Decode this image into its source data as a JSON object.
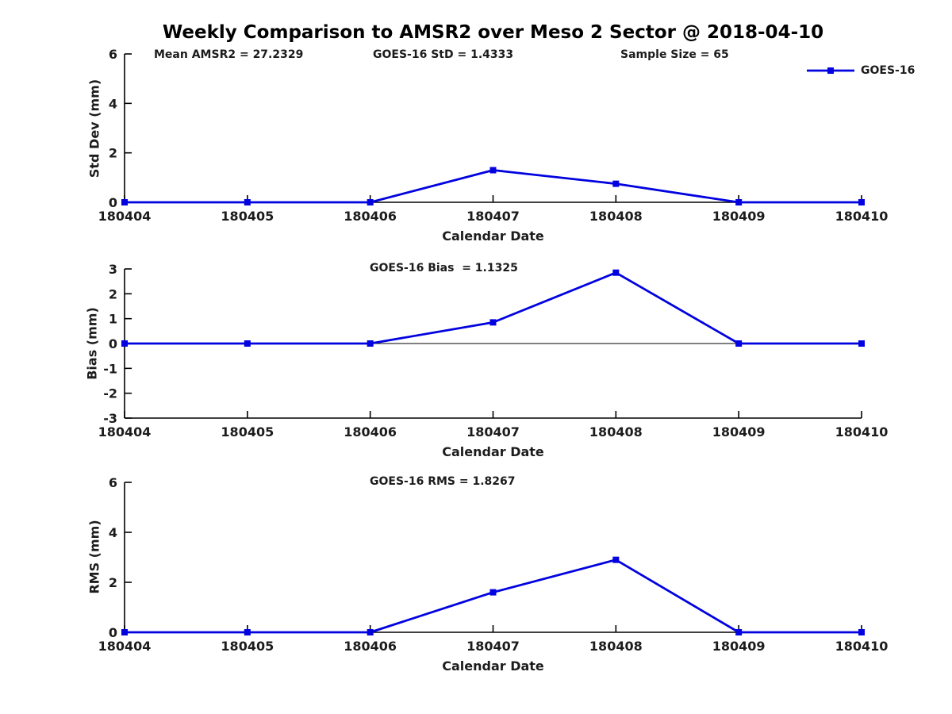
{
  "title": "Weekly Comparison to AMSR2 over Meso 2 Sector @ 2018-04-10",
  "legend": {
    "label": "GOES-16"
  },
  "colors": {
    "line": "#0202e0",
    "axis": "#000000",
    "text": "#1c1c1c"
  },
  "chart_data": [
    {
      "type": "line",
      "ylabel": "Std Dev (mm)",
      "xlabel": "Calendar Date",
      "annotations": [
        "Mean AMSR2 = 27.2329",
        "GOES-16 StD = 1.4333",
        "Sample Size = 65"
      ],
      "categories": [
        "180404",
        "180405",
        "180406",
        "180407",
        "180408",
        "180409",
        "180410"
      ],
      "series": [
        {
          "name": "GOES-16",
          "values": [
            0,
            0,
            0,
            1.3,
            0.75,
            0,
            0
          ]
        }
      ],
      "ylim": [
        0,
        6
      ],
      "yticks": [
        0,
        2,
        4,
        6
      ],
      "zero_line": false,
      "legend_position": "top-right-outside",
      "grid": false
    },
    {
      "type": "line",
      "ylabel": "Bias (mm)",
      "xlabel": "Calendar Date",
      "annotations": [
        "GOES-16 Bias  = 1.1325"
      ],
      "categories": [
        "180404",
        "180405",
        "180406",
        "180407",
        "180408",
        "180409",
        "180410"
      ],
      "series": [
        {
          "name": "GOES-16",
          "values": [
            0,
            0,
            0,
            0.85,
            2.85,
            0,
            0
          ]
        }
      ],
      "ylim": [
        -3,
        3
      ],
      "yticks": [
        -3,
        -2,
        -1,
        0,
        1,
        2,
        3
      ],
      "zero_line": true,
      "grid": false
    },
    {
      "type": "line",
      "ylabel": "RMS (mm)",
      "xlabel": "Calendar Date",
      "annotations": [
        "GOES-16 RMS = 1.8267"
      ],
      "categories": [
        "180404",
        "180405",
        "180406",
        "180407",
        "180408",
        "180409",
        "180410"
      ],
      "series": [
        {
          "name": "GOES-16",
          "values": [
            0,
            0,
            0,
            1.6,
            2.9,
            0,
            0
          ]
        }
      ],
      "ylim": [
        0,
        6
      ],
      "yticks": [
        0,
        2,
        4,
        6
      ],
      "zero_line": false,
      "grid": false
    }
  ]
}
